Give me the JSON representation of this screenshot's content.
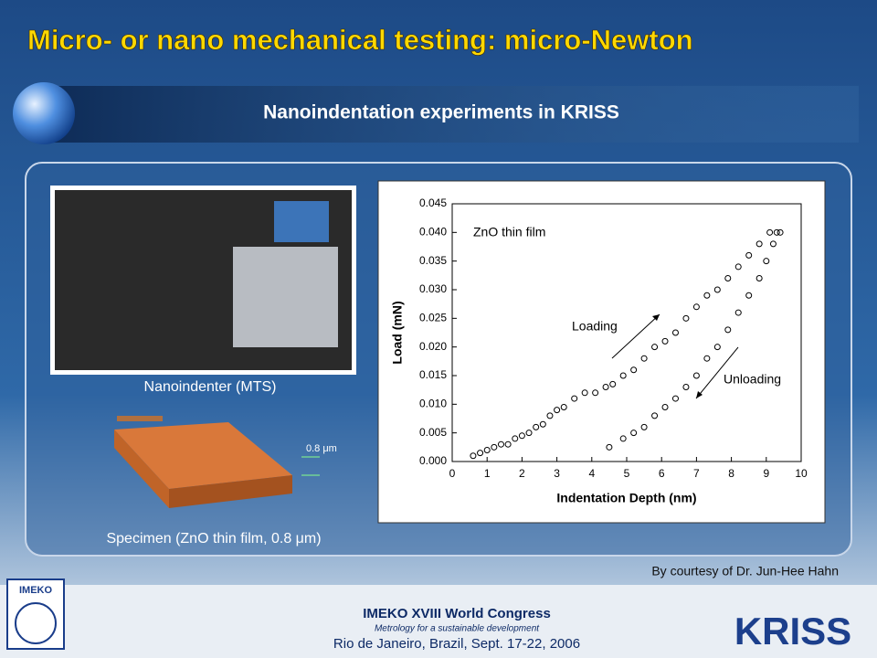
{
  "slide": {
    "title": "Micro- or nano mechanical testing: micro-Newton",
    "subtitle": "Nanoindentation experiments in KRISS",
    "photo_caption": "Nanoindenter (MTS)",
    "scale_label": "0.8 μm",
    "specimen_caption": "Specimen (ZnO thin film, 0.8 μm)",
    "courtesy": "By courtesy of Dr. Jun-Hee Hahn",
    "footer": {
      "congress": "IMEKO XVIII World Congress",
      "motto": "Metrology for a sustainable development",
      "place": "Rio de Janeiro, Brazil, Sept. 17-22, 2006"
    },
    "logos": {
      "left": "IMEKO",
      "right": "KRISS"
    }
  },
  "chart_data": {
    "type": "scatter",
    "annotation": "ZnO thin film",
    "x_label": "Indentation Depth (nm)",
    "y_label": "Load (mN)",
    "xlim": [
      0,
      10
    ],
    "xticks": [
      0,
      1,
      2,
      3,
      4,
      5,
      6,
      7,
      8,
      9,
      10
    ],
    "ylim": [
      0,
      0.045
    ],
    "yticks": [
      {
        "value": 0,
        "label": "0.000"
      },
      {
        "value": 0.005,
        "label": "0.005"
      },
      {
        "value": 0.01,
        "label": "0.010"
      },
      {
        "value": 0.015,
        "label": "0.015"
      },
      {
        "value": 0.02,
        "label": "0.020"
      },
      {
        "value": 0.025,
        "label": "0.025"
      },
      {
        "value": 0.03,
        "label": "0.030"
      },
      {
        "value": 0.035,
        "label": "0.035"
      },
      {
        "value": 0.04,
        "label": "0.040"
      },
      {
        "value": 0.045,
        "label": "0.045"
      }
    ],
    "series": [
      {
        "name": "Loading",
        "color": "#000000",
        "x": [
          0.6,
          0.8,
          1.0,
          1.2,
          1.4,
          1.6,
          1.8,
          2.0,
          2.2,
          2.4,
          2.6,
          2.8,
          3.0,
          3.2,
          3.5,
          3.8,
          4.1,
          4.4,
          4.6,
          4.9,
          5.2,
          5.5,
          5.8,
          6.1,
          6.4,
          6.7,
          7.0,
          7.3,
          7.6,
          7.9,
          8.2,
          8.5,
          8.8,
          9.1,
          9.3
        ],
        "values": [
          0.001,
          0.0015,
          0.002,
          0.0025,
          0.003,
          0.003,
          0.004,
          0.0045,
          0.005,
          0.006,
          0.0065,
          0.008,
          0.009,
          0.0095,
          0.011,
          0.012,
          0.012,
          0.013,
          0.0135,
          0.015,
          0.016,
          0.018,
          0.02,
          0.021,
          0.0225,
          0.025,
          0.027,
          0.029,
          0.03,
          0.032,
          0.034,
          0.036,
          0.038,
          0.04,
          0.04
        ]
      },
      {
        "name": "Unloading",
        "color": "#000000",
        "x": [
          9.4,
          9.2,
          9.0,
          8.8,
          8.5,
          8.2,
          7.9,
          7.6,
          7.3,
          7.0,
          6.7,
          6.4,
          6.1,
          5.8,
          5.5,
          5.2,
          4.9,
          4.5
        ],
        "values": [
          0.04,
          0.038,
          0.035,
          0.032,
          0.029,
          0.026,
          0.023,
          0.02,
          0.018,
          0.015,
          0.013,
          0.011,
          0.0095,
          0.008,
          0.006,
          0.005,
          0.004,
          0.0025
        ]
      }
    ]
  }
}
